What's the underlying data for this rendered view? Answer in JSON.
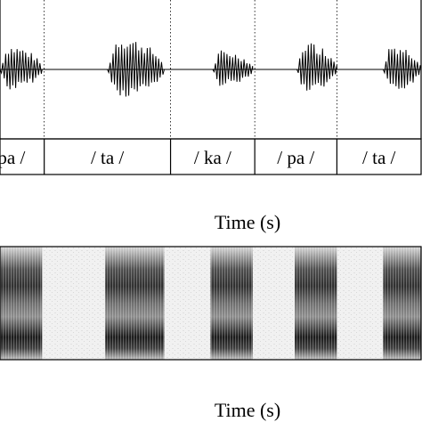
{
  "chart_data": [
    {
      "type": "line",
      "panel": "waveform",
      "title": "",
      "xlabel": "",
      "ylabel": "",
      "segments": [
        {
          "label": "pa /",
          "start": 0.0,
          "end": 0.105
        },
        {
          "label": "/ ta /",
          "start": 0.105,
          "end": 0.405
        },
        {
          "label": "/ ka /",
          "start": 0.405,
          "end": 0.605
        },
        {
          "label": "/ pa /",
          "start": 0.605,
          "end": 0.8
        },
        {
          "label": "/ ta /",
          "start": 0.8,
          "end": 1.0
        }
      ],
      "bursts": [
        {
          "start": 0.0,
          "end": 0.1,
          "amplitude": 0.7
        },
        {
          "start": 0.255,
          "end": 0.39,
          "amplitude": 0.95
        },
        {
          "start": 0.505,
          "end": 0.6,
          "amplitude": 0.55
        },
        {
          "start": 0.705,
          "end": 0.8,
          "amplitude": 0.8
        },
        {
          "start": 0.91,
          "end": 1.0,
          "amplitude": 0.75
        }
      ],
      "grid": false
    },
    {
      "type": "heatmap",
      "panel": "spectrogram",
      "title": "",
      "xlabel": "Time (s)",
      "ylabel": "",
      "voiced_regions": [
        {
          "start": 0.0,
          "end": 0.1
        },
        {
          "start": 0.25,
          "end": 0.39
        },
        {
          "start": 0.5,
          "end": 0.6
        },
        {
          "start": 0.7,
          "end": 0.8
        },
        {
          "start": 0.91,
          "end": 1.0
        }
      ],
      "grid": false
    }
  ],
  "labels": {
    "time_axis_upper": "Time (s)",
    "time_axis_lower": "Time (s)"
  }
}
